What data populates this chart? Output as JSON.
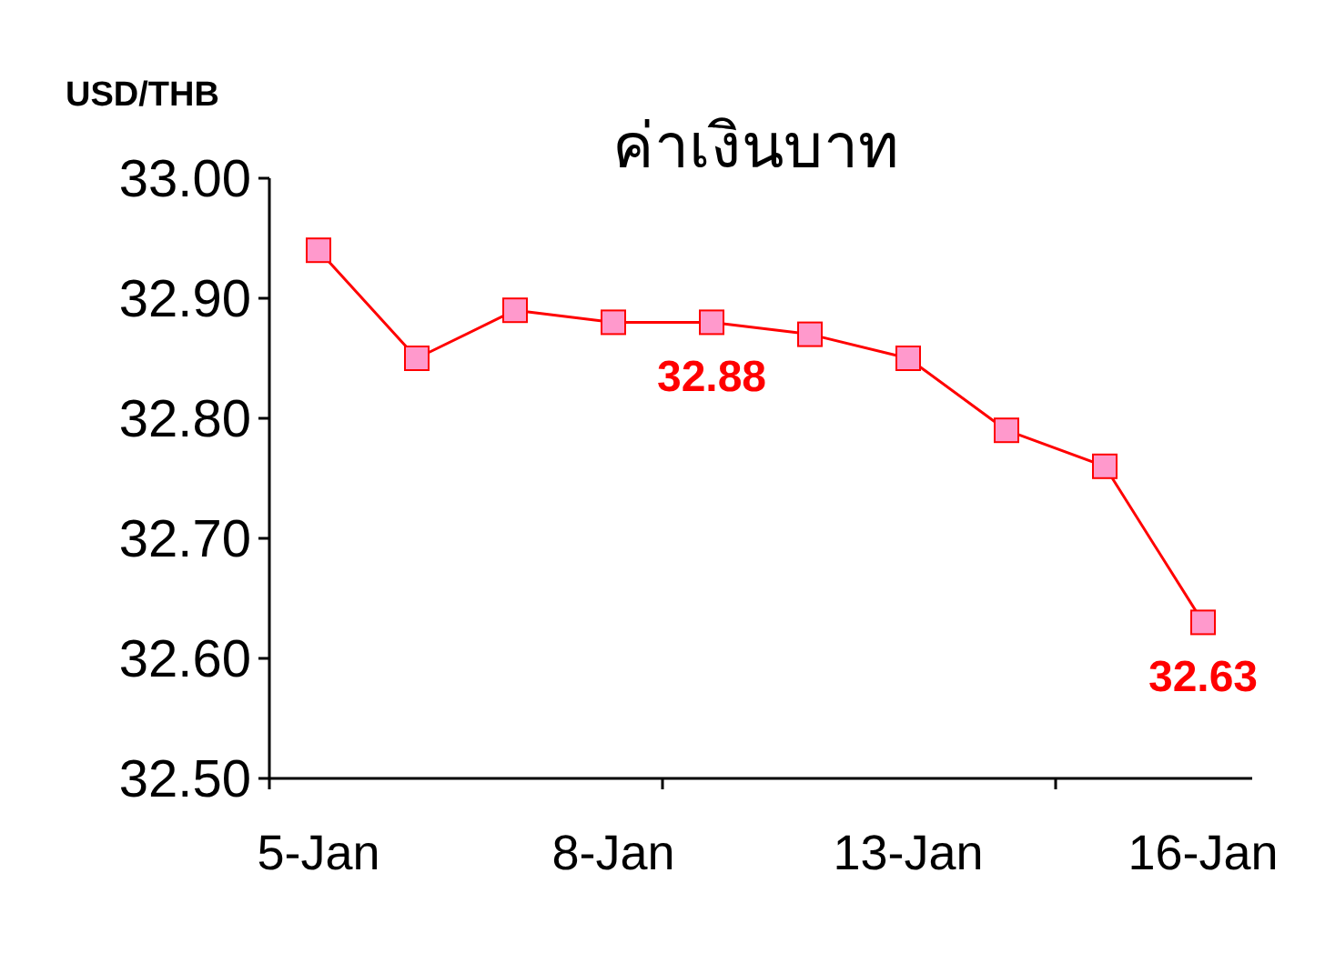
{
  "chart_data": {
    "type": "line",
    "title": "ค่าเงินบาท",
    "ylabel": "USD/THB",
    "categories": [
      "5-Jan",
      null,
      null,
      "8-Jan",
      null,
      null,
      "13-Jan",
      null,
      null,
      "16-Jan"
    ],
    "series": [
      {
        "color": "#ff0000",
        "values": [
          32.94,
          32.85,
          32.89,
          32.88,
          32.88,
          32.87,
          32.85,
          32.79,
          32.76,
          32.63
        ],
        "value_labels": [
          null,
          null,
          null,
          null,
          "32.88",
          null,
          null,
          null,
          null,
          "32.63"
        ]
      }
    ],
    "ylim": [
      32.5,
      33.0
    ],
    "yticks": [
      {
        "value": 32.5,
        "label": "32.50"
      },
      {
        "value": 32.6,
        "label": "32.60"
      },
      {
        "value": 32.7,
        "label": "32.70"
      },
      {
        "value": 32.8,
        "label": "32.80"
      },
      {
        "value": 32.9,
        "label": "32.90"
      },
      {
        "value": 33.0,
        "label": "33.00"
      }
    ],
    "grid": false,
    "marker": "square",
    "line_style": "solid"
  }
}
